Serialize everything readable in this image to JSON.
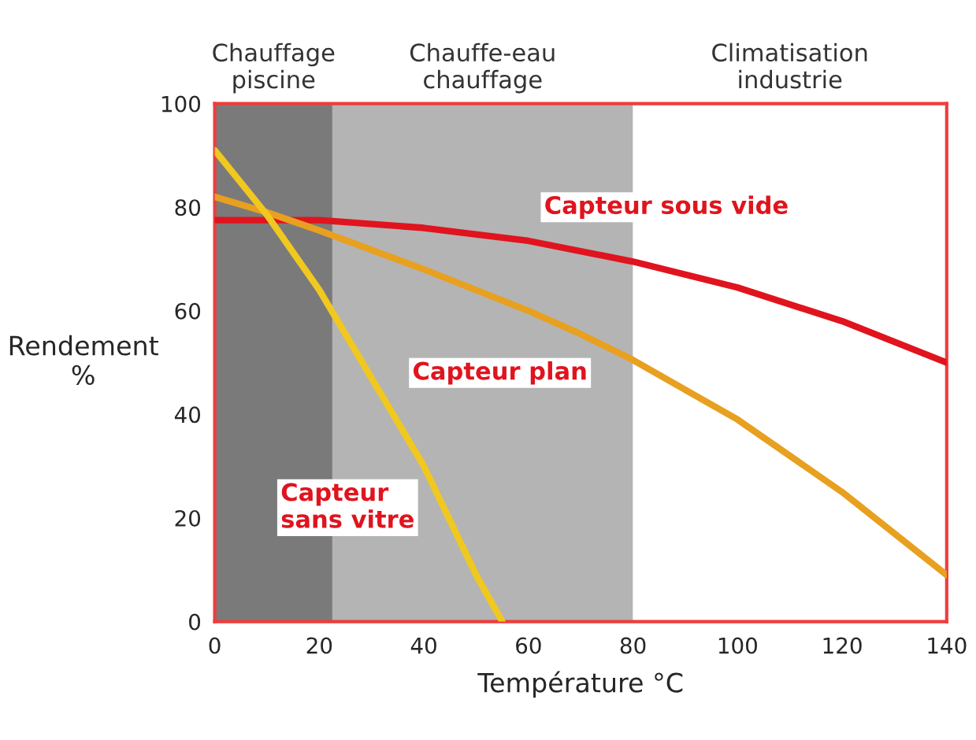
{
  "chart_data": {
    "type": "line",
    "xlabel": "Température °C",
    "ylabel": "Rendement\n%",
    "xlim": [
      0,
      140
    ],
    "ylim": [
      0,
      100
    ],
    "xticks": [
      0,
      20,
      40,
      60,
      80,
      100,
      120,
      140
    ],
    "yticks": [
      0,
      20,
      40,
      60,
      80,
      100
    ],
    "grid": false,
    "legend": false,
    "marker": "none",
    "line_style": "solid",
    "bands": [
      {
        "axis": "x",
        "from": 0,
        "to": 22.5,
        "label": "Chauffage\npiscine",
        "color": "#7a7a7a"
      },
      {
        "axis": "x",
        "from": 22.5,
        "to": 80,
        "label": "Chauffe-eau\nchauffage",
        "color": "#b4b4b4"
      },
      {
        "axis": "x",
        "from": 80,
        "to": 140,
        "label": "Climatisation\nindustrie",
        "color": "#ffffff"
      }
    ],
    "series": [
      {
        "name": "Capteur sous vide",
        "color": "#e0141e",
        "x": [
          0,
          20,
          40,
          60,
          80,
          100,
          120,
          140
        ],
        "values": [
          77.5,
          77.5,
          76,
          73.5,
          69.5,
          64.5,
          58,
          50
        ]
      },
      {
        "name": "Capteur plan",
        "color": "#e8a020",
        "x": [
          0,
          10,
          20,
          40,
          60,
          70,
          80,
          100,
          120,
          140
        ],
        "values": [
          82,
          79,
          75.5,
          68,
          60,
          55.5,
          50.5,
          39,
          25,
          9
        ]
      },
      {
        "name": "Capteur\nsans vitre",
        "color": "#f0c820",
        "x": [
          0,
          10,
          20,
          30,
          40,
          50,
          55
        ],
        "values": [
          91,
          78.5,
          64,
          47,
          30,
          9,
          0
        ]
      }
    ]
  }
}
